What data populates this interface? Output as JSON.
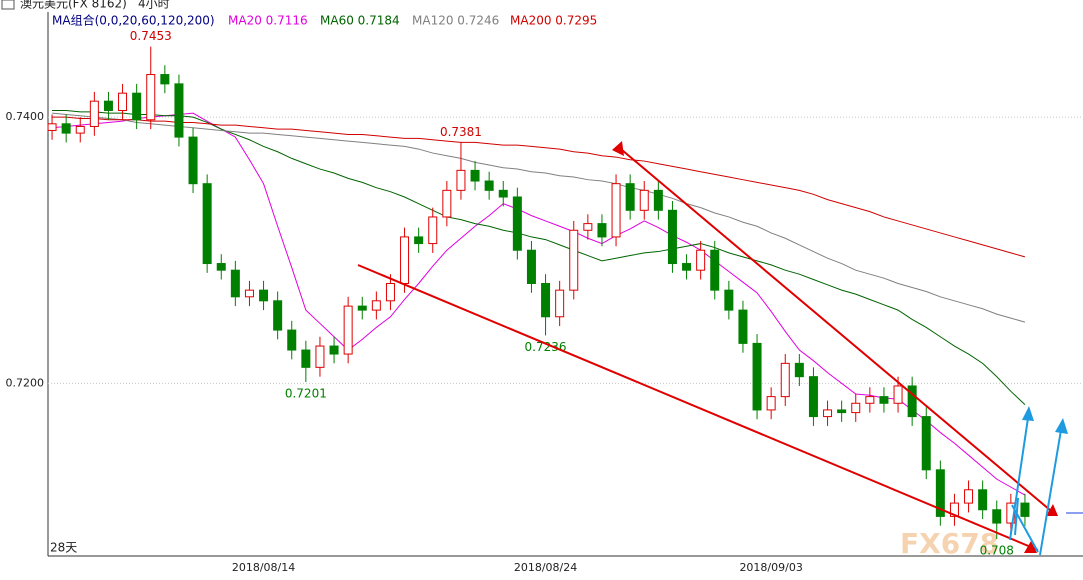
{
  "chart_data": {
    "type": "candlestick",
    "title": "澳元美元(FX 8162)",
    "period": "4小时",
    "indicator": "MA组合(0,0,20,60,120,200)",
    "footer": "28天",
    "watermark": "FX678",
    "categories": [
      null,
      null,
      null,
      null,
      null,
      null,
      null,
      null,
      null,
      null,
      null,
      null,
      null,
      null,
      null,
      "2018/08/14",
      null,
      null,
      null,
      null,
      null,
      null,
      null,
      null,
      null,
      null,
      null,
      null,
      null,
      null,
      null,
      null,
      null,
      null,
      null,
      "2018/08/24",
      null,
      null,
      null,
      null,
      null,
      null,
      null,
      null,
      null,
      null,
      null,
      null,
      null,
      null,
      null,
      "2018/09/03",
      null,
      null,
      null,
      null,
      null,
      null,
      null,
      null,
      null,
      null,
      null,
      null,
      null,
      null,
      null,
      null,
      null,
      null
    ],
    "open": [
      0.739,
      0.7395,
      0.7388,
      0.7393,
      0.7412,
      0.7405,
      0.7418,
      0.7398,
      0.7432,
      0.7425,
      0.7385,
      0.735,
      0.729,
      0.7285,
      0.7265,
      0.727,
      0.7262,
      0.724,
      0.7225,
      0.7212,
      0.7228,
      0.7222,
      0.7258,
      0.7255,
      0.7262,
      0.7275,
      0.731,
      0.7305,
      0.7325,
      0.7345,
      0.736,
      0.7352,
      0.7345,
      0.734,
      0.73,
      0.7275,
      0.725,
      0.727,
      0.7315,
      0.732,
      0.731,
      0.735,
      0.733,
      0.7345,
      0.733,
      0.729,
      0.7285,
      0.73,
      0.727,
      0.7255,
      0.723,
      0.718,
      0.719,
      0.7215,
      0.7205,
      0.7175,
      0.718,
      0.7178,
      0.7185,
      0.719,
      0.7185,
      0.7198,
      0.7175,
      0.7135,
      0.71,
      0.711,
      0.712,
      0.7105,
      0.7095,
      0.711
    ],
    "high": [
      0.7402,
      0.7402,
      0.74,
      0.7419,
      0.7419,
      0.7425,
      0.7425,
      0.7453,
      0.7439,
      0.7432,
      0.7392,
      0.7357,
      0.7297,
      0.7292,
      0.7277,
      0.7277,
      0.7269,
      0.7247,
      0.7232,
      0.7235,
      0.7235,
      0.7265,
      0.7265,
      0.7269,
      0.7282,
      0.7317,
      0.7317,
      0.7332,
      0.7352,
      0.7381,
      0.7367,
      0.7359,
      0.7352,
      0.7347,
      0.7307,
      0.7282,
      0.7277,
      0.7322,
      0.7327,
      0.7327,
      0.7357,
      0.7357,
      0.7352,
      0.7352,
      0.7337,
      0.7297,
      0.7307,
      0.7307,
      0.7277,
      0.7262,
      0.7237,
      0.7197,
      0.7222,
      0.7222,
      0.7212,
      0.7187,
      0.7187,
      0.7192,
      0.7197,
      0.7197,
      0.7205,
      0.7205,
      0.7182,
      0.7142,
      0.7117,
      0.7127,
      0.7127,
      0.7112,
      0.7117,
      0.7117
    ],
    "low": [
      0.7383,
      0.7381,
      0.7381,
      0.7386,
      0.7398,
      0.7398,
      0.7391,
      0.7391,
      0.7418,
      0.7378,
      0.7343,
      0.7283,
      0.7278,
      0.7258,
      0.7258,
      0.7255,
      0.7233,
      0.7218,
      0.7201,
      0.7205,
      0.7215,
      0.7215,
      0.7248,
      0.7248,
      0.7255,
      0.7268,
      0.7298,
      0.7298,
      0.7318,
      0.7338,
      0.7345,
      0.7338,
      0.7333,
      0.7293,
      0.7268,
      0.7236,
      0.7243,
      0.7263,
      0.7308,
      0.7303,
      0.7303,
      0.7323,
      0.7323,
      0.7323,
      0.7283,
      0.7278,
      0.7278,
      0.7263,
      0.7248,
      0.7223,
      0.7173,
      0.7173,
      0.7183,
      0.7198,
      0.7168,
      0.7168,
      0.7171,
      0.7171,
      0.7178,
      0.7178,
      0.7178,
      0.7168,
      0.7128,
      0.7093,
      0.7093,
      0.7103,
      0.7098,
      0.7083,
      0.7088,
      0.7093
    ],
    "close": [
      0.7395,
      0.7388,
      0.7393,
      0.7412,
      0.7405,
      0.7418,
      0.7398,
      0.7432,
      0.7425,
      0.7385,
      0.735,
      0.729,
      0.7285,
      0.7265,
      0.727,
      0.7262,
      0.724,
      0.7225,
      0.7212,
      0.7228,
      0.7222,
      0.7258,
      0.7255,
      0.7262,
      0.7275,
      0.731,
      0.7305,
      0.7325,
      0.7345,
      0.736,
      0.7352,
      0.7345,
      0.734,
      0.73,
      0.7275,
      0.725,
      0.727,
      0.7315,
      0.732,
      0.731,
      0.735,
      0.733,
      0.7345,
      0.733,
      0.729,
      0.7285,
      0.73,
      0.727,
      0.7255,
      0.723,
      0.718,
      0.719,
      0.7215,
      0.7205,
      0.7175,
      0.718,
      0.7178,
      0.7185,
      0.719,
      0.7185,
      0.7198,
      0.7175,
      0.7135,
      0.71,
      0.711,
      0.712,
      0.7105,
      0.7095,
      0.711,
      0.71
    ],
    "up_color": "#e00000",
    "down_color": "#008000",
    "series": [
      {
        "name": "MA20 0.7116",
        "color": "#e000e0",
        "values": [
          0.7392,
          0.7393,
          0.7394,
          0.7395,
          0.7396,
          0.7397,
          0.7399,
          0.74,
          0.7401,
          0.7402,
          0.7403,
          0.7397,
          0.7391,
          0.7385,
          0.7368,
          0.735,
          0.7318,
          0.7287,
          0.7255,
          0.7245,
          0.7235,
          0.7225,
          0.7233,
          0.7242,
          0.725,
          0.7263,
          0.7275,
          0.7288,
          0.73,
          0.7309,
          0.7318,
          0.7326,
          0.7335,
          0.7331,
          0.7326,
          0.7322,
          0.7318,
          0.7314,
          0.7309,
          0.7305,
          0.7311,
          0.7316,
          0.7322,
          0.7317,
          0.7311,
          0.7306,
          0.73,
          0.7292,
          0.7284,
          0.7276,
          0.7268,
          0.7254,
          0.7239,
          0.7225,
          0.7217,
          0.7208,
          0.72,
          0.7192,
          0.7191,
          0.7189,
          0.7188,
          0.718,
          0.7172,
          0.7163,
          0.7155,
          0.7146,
          0.7137,
          0.7128,
          0.7122,
          0.7116
        ]
      },
      {
        "name": "MA60 0.7184",
        "color": "#006400",
        "values": [
          0.7405,
          0.7405,
          0.7404,
          0.7404,
          0.7403,
          0.7403,
          0.7402,
          0.7402,
          0.7401,
          0.7401,
          0.74,
          0.7396,
          0.7391,
          0.7387,
          0.7383,
          0.7378,
          0.7374,
          0.7369,
          0.7365,
          0.7361,
          0.7358,
          0.7354,
          0.7351,
          0.7347,
          0.7344,
          0.734,
          0.7335,
          0.733,
          0.7325,
          0.7323,
          0.732,
          0.7318,
          0.7315,
          0.7313,
          0.731,
          0.7308,
          0.7304,
          0.73,
          0.7296,
          0.7292,
          0.7294,
          0.7296,
          0.7298,
          0.7299,
          0.7301,
          0.7303,
          0.7305,
          0.7302,
          0.7298,
          0.7295,
          0.7292,
          0.7289,
          0.7285,
          0.7282,
          0.7278,
          0.7274,
          0.727,
          0.7267,
          0.7263,
          0.7259,
          0.7255,
          0.7248,
          0.7242,
          0.7235,
          0.7228,
          0.7222,
          0.7215,
          0.7205,
          0.7194,
          0.7184
        ]
      },
      {
        "name": "MA120 0.7246",
        "color": "#808080",
        "values": [
          0.7403,
          0.7402,
          0.7401,
          0.74,
          0.7399,
          0.7398,
          0.7396,
          0.7395,
          0.7394,
          0.7393,
          0.7392,
          0.7391,
          0.739,
          0.7389,
          0.7388,
          0.7388,
          0.7387,
          0.7386,
          0.7385,
          0.7384,
          0.7383,
          0.7382,
          0.7381,
          0.738,
          0.7379,
          0.7378,
          0.7376,
          0.7373,
          0.7371,
          0.7369,
          0.7366,
          0.7364,
          0.7362,
          0.7361,
          0.7359,
          0.7358,
          0.7356,
          0.7355,
          0.7353,
          0.7352,
          0.735,
          0.7347,
          0.7345,
          0.7342,
          0.7339,
          0.7335,
          0.7332,
          0.7328,
          0.7325,
          0.7321,
          0.7318,
          0.7313,
          0.7309,
          0.7304,
          0.7299,
          0.7294,
          0.729,
          0.7285,
          0.7282,
          0.7279,
          0.7275,
          0.7272,
          0.7269,
          0.7265,
          0.7262,
          0.7259,
          0.7256,
          0.7252,
          0.7249,
          0.7246
        ]
      },
      {
        "name": "MA200 0.7295",
        "color": "#d00000",
        "values": [
          0.74,
          0.74,
          0.7399,
          0.7399,
          0.7398,
          0.7398,
          0.7398,
          0.7397,
          0.7397,
          0.7396,
          0.7396,
          0.7395,
          0.7394,
          0.7394,
          0.7393,
          0.7392,
          0.7391,
          0.7391,
          0.739,
          0.7389,
          0.7388,
          0.7387,
          0.7387,
          0.7386,
          0.7385,
          0.7384,
          0.7384,
          0.7383,
          0.7382,
          0.7381,
          0.7381,
          0.738,
          0.7379,
          0.7379,
          0.7378,
          0.7377,
          0.7376,
          0.7374,
          0.7373,
          0.7371,
          0.737,
          0.7368,
          0.7367,
          0.7365,
          0.7363,
          0.7361,
          0.7359,
          0.7357,
          0.7355,
          0.7353,
          0.7351,
          0.7349,
          0.7347,
          0.7345,
          0.7342,
          0.7338,
          0.7335,
          0.7332,
          0.7329,
          0.7325,
          0.7322,
          0.7319,
          0.7316,
          0.7313,
          0.731,
          0.7307,
          0.7304,
          0.7301,
          0.7298,
          0.7295
        ]
      }
    ],
    "ylim": [
      0.7071,
      0.7479
    ],
    "yticks": [
      {
        "value": 0.72,
        "label": "0.7200"
      },
      {
        "value": 0.74,
        "label": "0.7400"
      }
    ],
    "grid": true,
    "annotations": [
      {
        "value": 0.7453,
        "color": "#d00000"
      },
      {
        "value": 0.7381,
        "color": "#d00000"
      },
      {
        "value": 0.7236,
        "color": "#008000"
      },
      {
        "value": 0.7201,
        "color": "#008000"
      },
      {
        "value": 0.7083,
        "label": "0.708",
        "color": "#008000"
      }
    ]
  }
}
